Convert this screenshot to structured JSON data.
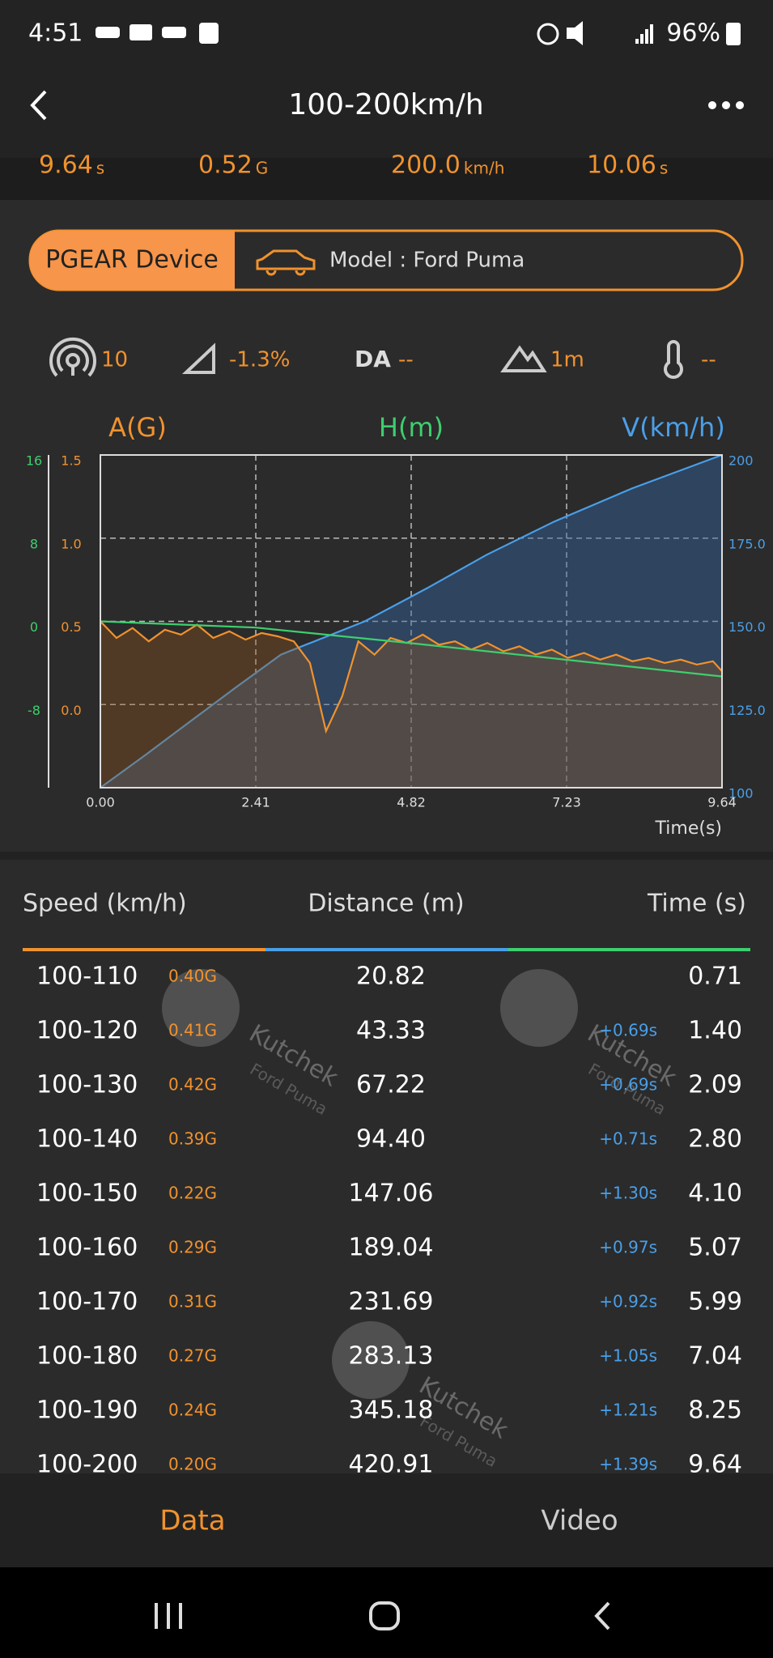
{
  "status": {
    "time": "4:51",
    "battery": "96%"
  },
  "header": {
    "title": "100-200km/h"
  },
  "summary": [
    {
      "value": "9.64",
      "unit": "s"
    },
    {
      "value": "0.52",
      "unit": "G"
    },
    {
      "value": "200.0",
      "unit": "km/h"
    },
    {
      "value": "10.06",
      "unit": "s"
    }
  ],
  "device": {
    "label": "PGEAR Device",
    "model": "Model : Ford Puma"
  },
  "metrics": {
    "satellites": "10",
    "slope": "-1.3%",
    "da_label": "DA",
    "da_value": "--",
    "altitude": "1m",
    "temperature": "--"
  },
  "chart_data": {
    "type": "line",
    "x_label": "Time(s)",
    "xlim": [
      0,
      9.64
    ],
    "xticks": [
      {
        "value": 0,
        "label": "0.00"
      },
      2.41,
      4.82,
      7.23,
      9.64
    ],
    "ylim": [
      -0.5,
      1.5
    ],
    "yticks": [
      1.5,
      {
        "value": 1.0,
        "label": "1.0"
      },
      0.5,
      {
        "value": 0.0,
        "label": "0.0"
      }
    ],
    "y2lim": [
      100,
      200
    ],
    "y2ticks": [
      200,
      {
        "value": 175,
        "label": "175.0"
      },
      {
        "value": 150,
        "label": "150.0"
      },
      {
        "value": 125,
        "label": "125.0"
      },
      100
    ],
    "y3lim": [
      -16,
      16
    ],
    "y3ticks": [
      16,
      8,
      0,
      -8
    ],
    "grid": true,
    "series": [
      {
        "name": "A(G)",
        "color": "#f0922e",
        "axis": "y",
        "x": [
          0,
          0.25,
          0.5,
          0.75,
          1.0,
          1.25,
          1.5,
          1.75,
          2.0,
          2.25,
          2.5,
          2.75,
          3.0,
          3.25,
          3.5,
          3.75,
          4.0,
          4.25,
          4.5,
          4.75,
          5.0,
          5.25,
          5.5,
          5.75,
          6.0,
          6.25,
          6.5,
          6.75,
          7.0,
          7.25,
          7.5,
          7.75,
          8.0,
          8.25,
          8.5,
          8.75,
          9.0,
          9.25,
          9.5,
          9.64
        ],
        "values": [
          0.5,
          0.4,
          0.46,
          0.38,
          0.45,
          0.42,
          0.48,
          0.4,
          0.44,
          0.39,
          0.43,
          0.41,
          0.38,
          0.25,
          -0.16,
          0.05,
          0.38,
          0.3,
          0.4,
          0.37,
          0.42,
          0.36,
          0.38,
          0.33,
          0.37,
          0.32,
          0.35,
          0.3,
          0.33,
          0.28,
          0.31,
          0.27,
          0.3,
          0.26,
          0.28,
          0.25,
          0.27,
          0.24,
          0.26,
          0.2
        ]
      },
      {
        "name": "H(m)",
        "color": "#3ecf6e",
        "axis": "y3",
        "x": [
          0,
          2.41,
          4.82,
          7.23,
          9.64
        ],
        "values": [
          0,
          -0.6,
          -2.1,
          -3.7,
          -5.3
        ]
      },
      {
        "name": "V(km/h)",
        "color": "#4a9fe8",
        "axis": "y2",
        "x": [
          0,
          0.71,
          1.4,
          2.09,
          2.8,
          4.1,
          5.07,
          5.99,
          7.04,
          8.25,
          9.64
        ],
        "values": [
          100,
          110,
          120,
          130,
          140,
          150,
          160,
          170,
          180,
          190,
          200
        ]
      }
    ]
  },
  "table": {
    "headers": [
      "Speed (km/h)",
      "Distance (m)",
      "Time (s)"
    ],
    "rows": [
      {
        "speed": "100-110",
        "g": "0.40G",
        "distance": "20.82",
        "time": "0.71"
      },
      {
        "speed": "100-120",
        "g": "0.41G",
        "distance": "43.33",
        "delta": "+0.69s",
        "time": "1.40"
      },
      {
        "speed": "100-130",
        "g": "0.42G",
        "distance": "67.22",
        "delta": "+0.69s",
        "time": "2.09"
      },
      {
        "speed": "100-140",
        "g": "0.39G",
        "distance": "94.40",
        "delta": "+0.71s",
        "time": "2.80"
      },
      {
        "speed": "100-150",
        "g": "0.22G",
        "distance": "147.06",
        "delta": "+1.30s",
        "time": "4.10"
      },
      {
        "speed": "100-160",
        "g": "0.29G",
        "distance": "189.04",
        "delta": "+0.97s",
        "time": "5.07"
      },
      {
        "speed": "100-170",
        "g": "0.31G",
        "distance": "231.69",
        "delta": "+0.92s",
        "time": "5.99"
      },
      {
        "speed": "100-180",
        "g": "0.27G",
        "distance": "283.13",
        "delta": "+1.05s",
        "time": "7.04"
      },
      {
        "speed": "100-190",
        "g": "0.24G",
        "distance": "345.18",
        "delta": "+1.21s",
        "time": "8.25"
      },
      {
        "speed": "100-200",
        "g": "0.20G",
        "distance": "420.91",
        "delta": "+1.39s",
        "time": "9.64"
      }
    ]
  },
  "watermark": {
    "name": "Kutchek",
    "car": "Ford Puma"
  },
  "tabs": [
    "Data",
    "Video"
  ]
}
